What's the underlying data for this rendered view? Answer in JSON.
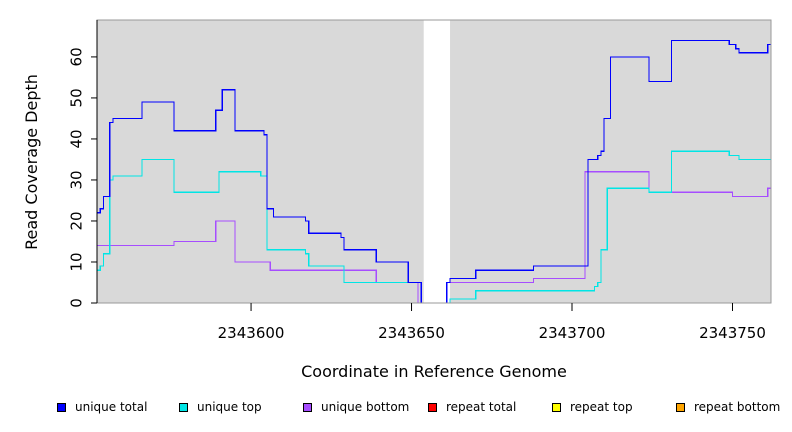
{
  "chart_data": {
    "type": "line",
    "xlabel": "Coordinate in Reference Genome",
    "ylabel": "Read Coverage Depth",
    "xlim": [
      2343552,
      2343762
    ],
    "ylim": [
      0,
      69
    ],
    "x_ticks": [
      2343600,
      2343650,
      2343700,
      2343750
    ],
    "y_ticks": [
      0,
      10,
      20,
      30,
      40,
      50,
      60
    ],
    "background": "#d9d9d9",
    "gap": {
      "x": [
        2343653.8,
        2343662
      ]
    },
    "series": [
      {
        "name": "unique total",
        "color": "#0000ff",
        "points": [
          [
            2343552,
            22
          ],
          [
            2343553,
            23
          ],
          [
            2343554,
            26
          ],
          [
            2343556,
            44
          ],
          [
            2343557,
            45
          ],
          [
            2343566,
            49
          ],
          [
            2343576,
            42
          ],
          [
            2343589,
            47
          ],
          [
            2343591,
            52
          ],
          [
            2343595,
            42
          ],
          [
            2343604,
            41
          ],
          [
            2343605,
            23
          ],
          [
            2343607,
            21
          ],
          [
            2343617,
            20
          ],
          [
            2343618,
            17
          ],
          [
            2343628,
            16
          ],
          [
            2343629,
            13
          ],
          [
            2343639,
            10
          ],
          [
            2343649,
            5
          ],
          [
            2343653,
            0
          ],
          [
            2343661,
            5
          ],
          [
            2343662,
            6
          ],
          [
            2343670,
            8
          ],
          [
            2343688,
            9
          ],
          [
            2343705,
            35
          ],
          [
            2343708,
            36
          ],
          [
            2343709,
            37
          ],
          [
            2343710,
            45
          ],
          [
            2343712,
            60
          ],
          [
            2343724,
            54
          ],
          [
            2343731,
            64
          ],
          [
            2343749,
            63
          ],
          [
            2343751,
            62
          ],
          [
            2343752,
            61
          ],
          [
            2343761,
            63
          ],
          [
            2343762,
            63
          ]
        ]
      },
      {
        "name": "unique top",
        "color": "#00e5e5",
        "points": [
          [
            2343552,
            8
          ],
          [
            2343553,
            9
          ],
          [
            2343554,
            12
          ],
          [
            2343556,
            30
          ],
          [
            2343557,
            31
          ],
          [
            2343566,
            35
          ],
          [
            2343576,
            27
          ],
          [
            2343590,
            32
          ],
          [
            2343603,
            31
          ],
          [
            2343605,
            13
          ],
          [
            2343617,
            12
          ],
          [
            2343618,
            9
          ],
          [
            2343629,
            5
          ],
          [
            2343653,
            0
          ],
          [
            2343662,
            1
          ],
          [
            2343670,
            3
          ],
          [
            2343707,
            4
          ],
          [
            2343708,
            5
          ],
          [
            2343709,
            13
          ],
          [
            2343711,
            28
          ],
          [
            2343724,
            27
          ],
          [
            2343731,
            37
          ],
          [
            2343749,
            36
          ],
          [
            2343752,
            35
          ],
          [
            2343762,
            35
          ]
        ]
      },
      {
        "name": "unique bottom",
        "color": "#a64dff",
        "points": [
          [
            2343552,
            14
          ],
          [
            2343576,
            15
          ],
          [
            2343589,
            20
          ],
          [
            2343595,
            10
          ],
          [
            2343606,
            8
          ],
          [
            2343639,
            5
          ],
          [
            2343652,
            0
          ],
          [
            2343661,
            5
          ],
          [
            2343688,
            6
          ],
          [
            2343704,
            32
          ],
          [
            2343724,
            27
          ],
          [
            2343750,
            26
          ],
          [
            2343761,
            28
          ],
          [
            2343762,
            28
          ]
        ]
      },
      {
        "name": "repeat total",
        "color": "#ff0000",
        "points": [
          [
            2343552,
            0
          ],
          [
            2343762,
            0
          ]
        ]
      },
      {
        "name": "repeat top",
        "color": "#ffff00",
        "points": [
          [
            2343552,
            0
          ],
          [
            2343762,
            0
          ]
        ]
      },
      {
        "name": "repeat bottom",
        "color": "#ffa500",
        "points": [
          [
            2343552,
            0
          ],
          [
            2343762,
            0
          ]
        ]
      }
    ]
  }
}
